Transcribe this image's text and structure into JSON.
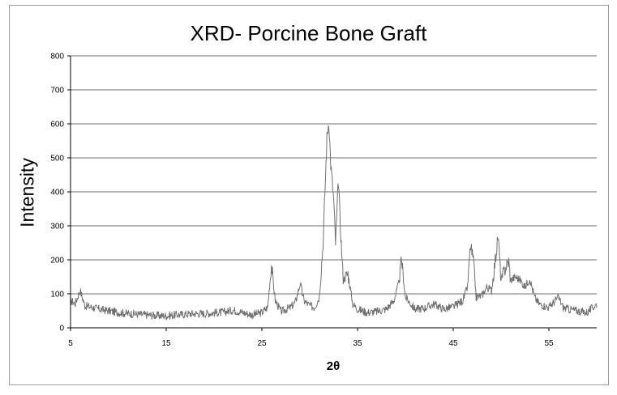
{
  "chart_data": {
    "type": "line",
    "title": "XRD- Porcine Bone Graft",
    "xlabel": "2θ",
    "ylabel": "Intensity",
    "xlim": [
      5,
      60
    ],
    "ylim": [
      0,
      800
    ],
    "x_ticks": [
      5,
      15,
      25,
      35,
      45,
      55
    ],
    "y_ticks": [
      0,
      100,
      200,
      300,
      400,
      500,
      600,
      700,
      800
    ],
    "grid": "horizontal",
    "legend": "none",
    "line_color": "#707070",
    "grid_color": "#8c8c8c",
    "profile": [
      [
        5.0,
        80
      ],
      [
        5.5,
        72
      ],
      [
        6.0,
        110
      ],
      [
        6.5,
        65
      ],
      [
        7.0,
        62
      ],
      [
        8.0,
        55
      ],
      [
        9.0,
        50
      ],
      [
        10.0,
        45
      ],
      [
        11.0,
        42
      ],
      [
        12.0,
        40
      ],
      [
        13.0,
        38
      ],
      [
        14.0,
        36
      ],
      [
        15.0,
        35
      ],
      [
        16.0,
        38
      ],
      [
        17.0,
        40
      ],
      [
        18.0,
        42
      ],
      [
        19.0,
        42
      ],
      [
        20.0,
        44
      ],
      [
        21.0,
        46
      ],
      [
        22.0,
        52
      ],
      [
        23.0,
        45
      ],
      [
        24.0,
        38
      ],
      [
        25.0,
        45
      ],
      [
        25.6,
        60
      ],
      [
        26.0,
        185
      ],
      [
        26.4,
        80
      ],
      [
        27.0,
        48
      ],
      [
        28.0,
        60
      ],
      [
        28.5,
        75
      ],
      [
        29.0,
        130
      ],
      [
        29.4,
        80
      ],
      [
        30.0,
        65
      ],
      [
        30.5,
        60
      ],
      [
        31.0,
        90
      ],
      [
        31.4,
        250
      ],
      [
        31.8,
        560
      ],
      [
        32.0,
        610
      ],
      [
        32.2,
        480
      ],
      [
        32.5,
        380
      ],
      [
        32.7,
        250
      ],
      [
        33.0,
        435
      ],
      [
        33.2,
        300
      ],
      [
        33.5,
        140
      ],
      [
        34.0,
        160
      ],
      [
        34.5,
        70
      ],
      [
        35.0,
        55
      ],
      [
        36.0,
        45
      ],
      [
        37.0,
        48
      ],
      [
        38.0,
        55
      ],
      [
        38.8,
        80
      ],
      [
        39.3,
        130
      ],
      [
        39.6,
        200
      ],
      [
        40.0,
        90
      ],
      [
        41.0,
        55
      ],
      [
        42.0,
        58
      ],
      [
        43.0,
        70
      ],
      [
        44.0,
        55
      ],
      [
        45.0,
        62
      ],
      [
        46.0,
        80
      ],
      [
        46.5,
        120
      ],
      [
        46.8,
        240
      ],
      [
        47.1,
        200
      ],
      [
        47.4,
        90
      ],
      [
        48.0,
        95
      ],
      [
        48.5,
        120
      ],
      [
        49.0,
        110
      ],
      [
        49.4,
        200
      ],
      [
        49.7,
        270
      ],
      [
        50.0,
        140
      ],
      [
        50.5,
        180
      ],
      [
        50.8,
        195
      ],
      [
        51.0,
        140
      ],
      [
        51.5,
        150
      ],
      [
        52.0,
        140
      ],
      [
        52.5,
        120
      ],
      [
        53.0,
        145
      ],
      [
        53.5,
        90
      ],
      [
        54.0,
        70
      ],
      [
        55.0,
        60
      ],
      [
        55.5,
        75
      ],
      [
        56.0,
        90
      ],
      [
        56.5,
        60
      ],
      [
        57.0,
        55
      ],
      [
        58.0,
        50
      ],
      [
        59.0,
        45
      ],
      [
        60.0,
        70
      ]
    ],
    "noise_amplitude": 12
  }
}
